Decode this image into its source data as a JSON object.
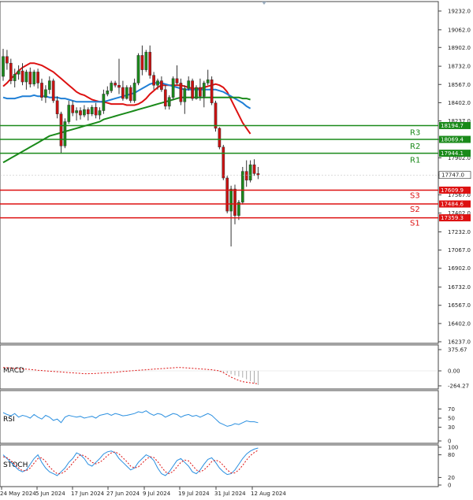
{
  "chart_data": {
    "type": "candlestick",
    "price_axis": {
      "ylim": [
        16237,
        19232
      ],
      "ticks": [
        "19232.0",
        "19062.0",
        "18902.0",
        "18732.0",
        "18567.0",
        "18402.0",
        "18237.0",
        "18069.4",
        "17902.0",
        "17747.0",
        "17567.0",
        "17402.0",
        "17232.0",
        "17067.0",
        "16902.0",
        "16732.0",
        "16567.0",
        "16402.0",
        "16237.0"
      ]
    },
    "x_axis": {
      "ticks": [
        "24 May 2024",
        "5 Jun 2024",
        "17 Jun 2024",
        "27 Jun 2024",
        "9 Jul 2024",
        "19 Jul 2024",
        "31 Jul 2024",
        "12 Aug 2024"
      ]
    },
    "candles": [
      {
        "o": 18640,
        "h": 18890,
        "l": 18600,
        "c": 18820
      },
      {
        "o": 18820,
        "h": 18880,
        "l": 18700,
        "c": 18760
      },
      {
        "o": 18760,
        "h": 18800,
        "l": 18570,
        "c": 18600
      },
      {
        "o": 18600,
        "h": 18710,
        "l": 18540,
        "c": 18660
      },
      {
        "o": 18660,
        "h": 18740,
        "l": 18610,
        "c": 18690
      },
      {
        "o": 18690,
        "h": 18760,
        "l": 18560,
        "c": 18590
      },
      {
        "o": 18590,
        "h": 18700,
        "l": 18520,
        "c": 18680
      },
      {
        "o": 18680,
        "h": 18720,
        "l": 18540,
        "c": 18570
      },
      {
        "o": 18570,
        "h": 18700,
        "l": 18550,
        "c": 18680
      },
      {
        "o": 18680,
        "h": 18710,
        "l": 18530,
        "c": 18580
      },
      {
        "o": 18580,
        "h": 18620,
        "l": 18420,
        "c": 18450
      },
      {
        "o": 18450,
        "h": 18560,
        "l": 18400,
        "c": 18520
      },
      {
        "o": 18520,
        "h": 18640,
        "l": 18480,
        "c": 18600
      },
      {
        "o": 18600,
        "h": 18620,
        "l": 18400,
        "c": 18420
      },
      {
        "o": 18420,
        "h": 18460,
        "l": 18260,
        "c": 18300
      },
      {
        "o": 18300,
        "h": 18320,
        "l": 17940,
        "c": 18010
      },
      {
        "o": 18010,
        "h": 18260,
        "l": 17990,
        "c": 18230
      },
      {
        "o": 18230,
        "h": 18420,
        "l": 18210,
        "c": 18380
      },
      {
        "o": 18380,
        "h": 18420,
        "l": 18280,
        "c": 18310
      },
      {
        "o": 18310,
        "h": 18360,
        "l": 18240,
        "c": 18330
      },
      {
        "o": 18330,
        "h": 18360,
        "l": 18250,
        "c": 18290
      },
      {
        "o": 18290,
        "h": 18380,
        "l": 18270,
        "c": 18340
      },
      {
        "o": 18340,
        "h": 18360,
        "l": 18240,
        "c": 18300
      },
      {
        "o": 18300,
        "h": 18380,
        "l": 18280,
        "c": 18360
      },
      {
        "o": 18360,
        "h": 18400,
        "l": 18260,
        "c": 18290
      },
      {
        "o": 18290,
        "h": 18360,
        "l": 18250,
        "c": 18330
      },
      {
        "o": 18330,
        "h": 18520,
        "l": 18300,
        "c": 18480
      },
      {
        "o": 18480,
        "h": 18550,
        "l": 18460,
        "c": 18510
      },
      {
        "o": 18510,
        "h": 18600,
        "l": 18490,
        "c": 18580
      },
      {
        "o": 18580,
        "h": 18600,
        "l": 18540,
        "c": 18560
      },
      {
        "o": 18560,
        "h": 18800,
        "l": 18480,
        "c": 18540
      },
      {
        "o": 18540,
        "h": 18600,
        "l": 18420,
        "c": 18440
      },
      {
        "o": 18440,
        "h": 18560,
        "l": 18430,
        "c": 18540
      },
      {
        "o": 18540,
        "h": 18560,
        "l": 18400,
        "c": 18420
      },
      {
        "o": 18420,
        "h": 18620,
        "l": 18400,
        "c": 18580
      },
      {
        "o": 18580,
        "h": 18850,
        "l": 18560,
        "c": 18830
      },
      {
        "o": 18830,
        "h": 18920,
        "l": 18650,
        "c": 18700
      },
      {
        "o": 18700,
        "h": 18880,
        "l": 18680,
        "c": 18860
      },
      {
        "o": 18860,
        "h": 18920,
        "l": 18620,
        "c": 18650
      },
      {
        "o": 18650,
        "h": 18680,
        "l": 18520,
        "c": 18560
      },
      {
        "o": 18560,
        "h": 18620,
        "l": 18520,
        "c": 18600
      },
      {
        "o": 18600,
        "h": 18640,
        "l": 18500,
        "c": 18520
      },
      {
        "o": 18520,
        "h": 18560,
        "l": 18340,
        "c": 18370
      },
      {
        "o": 18370,
        "h": 18470,
        "l": 18340,
        "c": 18450
      },
      {
        "o": 18450,
        "h": 18640,
        "l": 18430,
        "c": 18620
      },
      {
        "o": 18620,
        "h": 18740,
        "l": 18560,
        "c": 18580
      },
      {
        "o": 18580,
        "h": 18620,
        "l": 18380,
        "c": 18410
      },
      {
        "o": 18410,
        "h": 18560,
        "l": 18300,
        "c": 18530
      },
      {
        "o": 18530,
        "h": 18640,
        "l": 18510,
        "c": 18600
      },
      {
        "o": 18600,
        "h": 18620,
        "l": 18420,
        "c": 18440
      },
      {
        "o": 18440,
        "h": 18560,
        "l": 18430,
        "c": 18540
      },
      {
        "o": 18540,
        "h": 18620,
        "l": 18420,
        "c": 18460
      },
      {
        "o": 18460,
        "h": 18600,
        "l": 18360,
        "c": 18580
      },
      {
        "o": 18580,
        "h": 18700,
        "l": 18560,
        "c": 18610
      },
      {
        "o": 18610,
        "h": 18640,
        "l": 18380,
        "c": 18400
      },
      {
        "o": 18400,
        "h": 18420,
        "l": 18140,
        "c": 18170
      },
      {
        "o": 18170,
        "h": 18180,
        "l": 17980,
        "c": 18000
      },
      {
        "o": 18000,
        "h": 18020,
        "l": 17700,
        "c": 17720
      },
      {
        "o": 17720,
        "h": 17740,
        "l": 17400,
        "c": 17420
      },
      {
        "o": 17420,
        "h": 17650,
        "l": 17100,
        "c": 17620
      },
      {
        "o": 17620,
        "h": 17660,
        "l": 17300,
        "c": 17380
      },
      {
        "o": 17380,
        "h": 17520,
        "l": 17340,
        "c": 17500
      },
      {
        "o": 17500,
        "h": 17820,
        "l": 17480,
        "c": 17780
      },
      {
        "o": 17780,
        "h": 17880,
        "l": 17640,
        "c": 17700
      },
      {
        "o": 17700,
        "h": 17880,
        "l": 17680,
        "c": 17840
      },
      {
        "o": 17840,
        "h": 17890,
        "l": 17740,
        "c": 17760
      },
      {
        "o": 17760,
        "h": 17820,
        "l": 17710,
        "c": 17747
      }
    ],
    "moving_averages": [
      {
        "name": "red",
        "color": "#dd1111",
        "start": 0,
        "values": [
          18550,
          18580,
          18620,
          18650,
          18690,
          18720,
          18740,
          18760,
          18760,
          18750,
          18740,
          18720,
          18700,
          18680,
          18650,
          18620,
          18590,
          18560,
          18530,
          18500,
          18480,
          18470,
          18450,
          18430,
          18420,
          18410,
          18410,
          18400,
          18390,
          18390,
          18390,
          18390,
          18380,
          18380,
          18380,
          18390,
          18410,
          18440,
          18480,
          18510,
          18540,
          18560,
          18560,
          18560,
          18560,
          18560,
          18560,
          18550,
          18540,
          18530,
          18530,
          18530,
          18540,
          18550,
          18560,
          18570,
          18560,
          18540,
          18500,
          18430,
          18360,
          18290,
          18220,
          18170,
          18120
        ]
      },
      {
        "name": "blue",
        "color": "#1f7fd6",
        "start": 0,
        "values": [
          18450,
          18440,
          18440,
          18440,
          18450,
          18460,
          18460,
          18460,
          18470,
          18460,
          18460,
          18460,
          18450,
          18450,
          18450,
          18440,
          18440,
          18430,
          18420,
          18410,
          18410,
          18410,
          18410,
          18410,
          18410,
          18410,
          18410,
          18420,
          18430,
          18440,
          18450,
          18460,
          18470,
          18480,
          18490,
          18510,
          18530,
          18550,
          18570,
          18580,
          18580,
          18580,
          18570,
          18560,
          18550,
          18540,
          18530,
          18520,
          18520,
          18520,
          18520,
          18520,
          18520,
          18520,
          18520,
          18520,
          18510,
          18500,
          18480,
          18460,
          18440,
          18420,
          18400,
          18370,
          18350
        ]
      },
      {
        "name": "green",
        "color": "#1a8a1a",
        "start": 0,
        "values": [
          17860,
          17880,
          17900,
          17920,
          17940,
          17960,
          17980,
          18000,
          18020,
          18040,
          18060,
          18080,
          18100,
          18110,
          18120,
          18130,
          18140,
          18150,
          18160,
          18170,
          18180,
          18190,
          18200,
          18210,
          18220,
          18230,
          18250,
          18260,
          18270,
          18280,
          18290,
          18300,
          18310,
          18320,
          18330,
          18340,
          18350,
          18360,
          18370,
          18380,
          18390,
          18400,
          18410,
          18420,
          18430,
          18440,
          18450,
          18450,
          18450,
          18450,
          18450,
          18450,
          18450,
          18450,
          18450,
          18450,
          18450,
          18450,
          18450,
          18450,
          18450,
          18450,
          18440,
          18440,
          18430
        ]
      }
    ],
    "levels": [
      {
        "label": "R3",
        "value": 18194.7,
        "tag": "18194.7",
        "color": "#1a8a1a"
      },
      {
        "label": "R2",
        "value": 18069.4,
        "tag": "18069.4",
        "color": "#1a8a1a"
      },
      {
        "label": "R1",
        "value": 17944.1,
        "tag": "17944.1",
        "color": "#1a8a1a"
      },
      {
        "label": "S3",
        "value": 17609.9,
        "tag": "17609.9",
        "color": "#dd1111"
      },
      {
        "label": "S2",
        "value": 17484.6,
        "tag": "17484.6",
        "color": "#dd1111"
      },
      {
        "label": "S1",
        "value": 17359.3,
        "tag": "17359.3",
        "color": "#dd1111"
      }
    ],
    "last_price": {
      "value": 17747,
      "tag": "17747.0"
    },
    "panels": [
      {
        "name": "MACD",
        "ticks": [
          "375.67",
          "0.00",
          "-264.27"
        ]
      },
      {
        "name": "RSI",
        "ticks": [
          "70",
          "50",
          "30",
          "0"
        ]
      },
      {
        "name": "STOCH",
        "ticks": [
          "100",
          "80",
          "20",
          "0"
        ]
      }
    ],
    "macd_signal": [
      60,
      55,
      50,
      45,
      40,
      35,
      30,
      25,
      18,
      10,
      5,
      0,
      -5,
      -10,
      -15,
      -20,
      -25,
      -30,
      -35,
      -40,
      -45,
      -50,
      -50,
      -48,
      -45,
      -42,
      -38,
      -34,
      -30,
      -25,
      -18,
      -10,
      -5,
      0,
      5,
      10,
      15,
      20,
      25,
      30,
      35,
      40,
      45,
      50,
      55,
      60,
      60,
      55,
      50,
      45,
      40,
      35,
      30,
      25,
      20,
      10,
      0,
      -30,
      -70,
      -110,
      -140,
      -170,
      -190,
      -200,
      -210,
      -220,
      -230
    ],
    "macd_hist": [
      -10,
      -20,
      -40,
      -60,
      -80,
      -100,
      -120,
      -150,
      -180,
      -220,
      -250
    ],
    "rsi": [
      62,
      58,
      55,
      60,
      52,
      56,
      54,
      50,
      58,
      52,
      48,
      56,
      52,
      45,
      48,
      40,
      52,
      56,
      54,
      52,
      54,
      50,
      52,
      54,
      50,
      56,
      58,
      60,
      56,
      60,
      58,
      55,
      56,
      58,
      60,
      64,
      62,
      66,
      60,
      56,
      60,
      58,
      52,
      56,
      60,
      58,
      52,
      56,
      58,
      54,
      56,
      52,
      56,
      60,
      56,
      48,
      40,
      36,
      32,
      34,
      38,
      36,
      40,
      44,
      42,
      42,
      40
    ],
    "stoch_k": [
      80,
      70,
      60,
      50,
      40,
      35,
      40,
      55,
      70,
      80,
      60,
      45,
      35,
      30,
      25,
      35,
      45,
      60,
      70,
      85,
      80,
      70,
      55,
      50,
      60,
      70,
      82,
      88,
      90,
      85,
      70,
      60,
      50,
      40,
      45,
      60,
      70,
      80,
      75,
      65,
      45,
      30,
      25,
      35,
      50,
      65,
      70,
      60,
      50,
      35,
      30,
      40,
      55,
      68,
      72,
      60,
      45,
      35,
      28,
      30,
      40,
      55,
      70,
      82,
      90,
      95,
      98
    ],
    "stoch_d": [
      75,
      72,
      65,
      55,
      45,
      38,
      38,
      45,
      58,
      70,
      72,
      62,
      48,
      38,
      30,
      30,
      36,
      46,
      58,
      70,
      80,
      78,
      70,
      60,
      56,
      60,
      68,
      78,
      85,
      88,
      82,
      72,
      62,
      50,
      45,
      48,
      58,
      68,
      75,
      73,
      62,
      48,
      35,
      30,
      36,
      48,
      60,
      66,
      64,
      52,
      40,
      35,
      40,
      50,
      62,
      66,
      62,
      52,
      40,
      32,
      32,
      40,
      52,
      66,
      78,
      86,
      92
    ]
  }
}
